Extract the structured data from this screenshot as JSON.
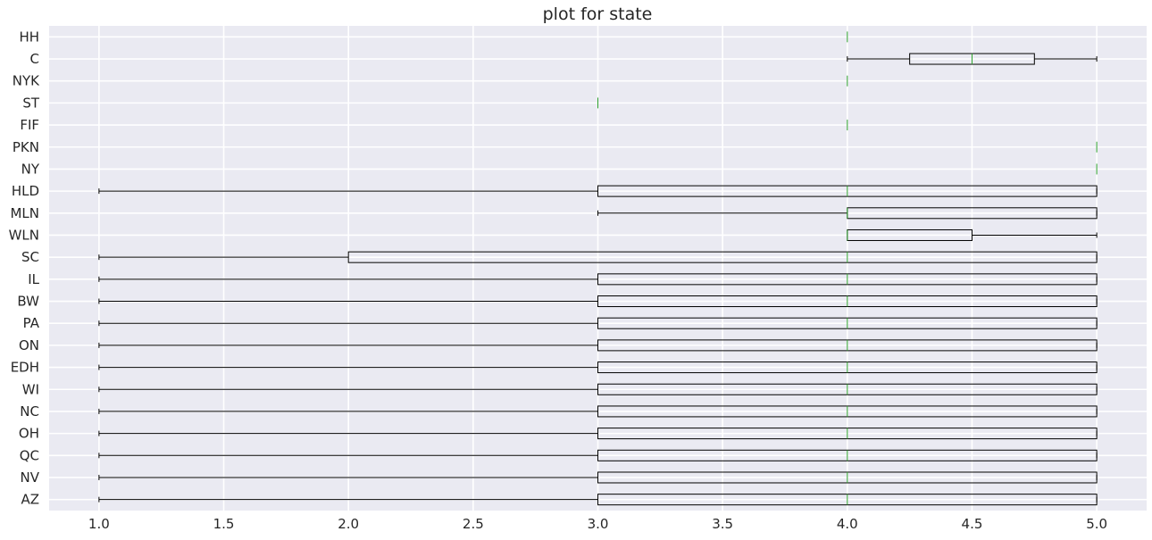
{
  "chart_data": {
    "type": "boxplot",
    "orientation": "horizontal",
    "title": "plot for state",
    "xlabel": "",
    "ylabel": "",
    "xlim": [
      0.8,
      5.2
    ],
    "xticks": [
      1.0,
      1.5,
      2.0,
      2.5,
      3.0,
      3.5,
      4.0,
      4.5,
      5.0
    ],
    "xtick_labels": [
      "1.0",
      "1.5",
      "2.0",
      "2.5",
      "3.0",
      "3.5",
      "4.0",
      "4.5",
      "5.0"
    ],
    "grid": true,
    "colors": {
      "background": "#eaeaf2",
      "grid": "#ffffff",
      "box": "#000000",
      "median": "#2ca02c",
      "text": "#262626"
    },
    "categories": [
      "AZ",
      "NV",
      "QC",
      "OH",
      "NC",
      "WI",
      "EDH",
      "ON",
      "PA",
      "BW",
      "IL",
      "SC",
      "WLN",
      "MLN",
      "HLD",
      "NY",
      "PKN",
      "FIF",
      "ST",
      "NYK",
      "C",
      "HH"
    ],
    "boxes": [
      {
        "category": "AZ",
        "whislo": 1,
        "q1": 3,
        "med": 4,
        "q3": 5,
        "whishi": 5
      },
      {
        "category": "NV",
        "whislo": 1,
        "q1": 3,
        "med": 4,
        "q3": 5,
        "whishi": 5
      },
      {
        "category": "QC",
        "whislo": 1,
        "q1": 3,
        "med": 4,
        "q3": 5,
        "whishi": 5
      },
      {
        "category": "OH",
        "whislo": 1,
        "q1": 3,
        "med": 4,
        "q3": 5,
        "whishi": 5
      },
      {
        "category": "NC",
        "whislo": 1,
        "q1": 3,
        "med": 4,
        "q3": 5,
        "whishi": 5
      },
      {
        "category": "WI",
        "whislo": 1,
        "q1": 3,
        "med": 4,
        "q3": 5,
        "whishi": 5
      },
      {
        "category": "EDH",
        "whislo": 1,
        "q1": 3,
        "med": 4,
        "q3": 5,
        "whishi": 5
      },
      {
        "category": "ON",
        "whislo": 1,
        "q1": 3,
        "med": 4,
        "q3": 5,
        "whishi": 5
      },
      {
        "category": "PA",
        "whislo": 1,
        "q1": 3,
        "med": 4,
        "q3": 5,
        "whishi": 5
      },
      {
        "category": "BW",
        "whislo": 1,
        "q1": 3,
        "med": 4,
        "q3": 5,
        "whishi": 5
      },
      {
        "category": "IL",
        "whislo": 1,
        "q1": 3,
        "med": 4,
        "q3": 5,
        "whishi": 5
      },
      {
        "category": "SC",
        "whislo": 1,
        "q1": 2,
        "med": 4,
        "q3": 5,
        "whishi": 5
      },
      {
        "category": "WLN",
        "whislo": 4,
        "q1": 4,
        "med": 4,
        "q3": 4.5,
        "whishi": 5
      },
      {
        "category": "MLN",
        "whislo": 3,
        "q1": 4,
        "med": 4,
        "q3": 5,
        "whishi": 5
      },
      {
        "category": "HLD",
        "whislo": 1,
        "q1": 3,
        "med": 4,
        "q3": 5,
        "whishi": 5
      },
      {
        "category": "NY",
        "whislo": 5,
        "q1": 5,
        "med": 5,
        "q3": 5,
        "whishi": 5
      },
      {
        "category": "PKN",
        "whislo": 5,
        "q1": 5,
        "med": 5,
        "q3": 5,
        "whishi": 5
      },
      {
        "category": "FIF",
        "whislo": 4,
        "q1": 4,
        "med": 4,
        "q3": 4,
        "whishi": 4
      },
      {
        "category": "ST",
        "whislo": 3,
        "q1": 3,
        "med": 3,
        "q3": 3,
        "whishi": 3
      },
      {
        "category": "NYK",
        "whislo": 4,
        "q1": 4,
        "med": 4,
        "q3": 4,
        "whishi": 4
      },
      {
        "category": "C",
        "whislo": 4,
        "q1": 4.25,
        "med": 4.5,
        "q3": 4.75,
        "whishi": 5
      },
      {
        "category": "HH",
        "whislo": 4,
        "q1": 4,
        "med": 4,
        "q3": 4,
        "whishi": 4
      }
    ]
  }
}
